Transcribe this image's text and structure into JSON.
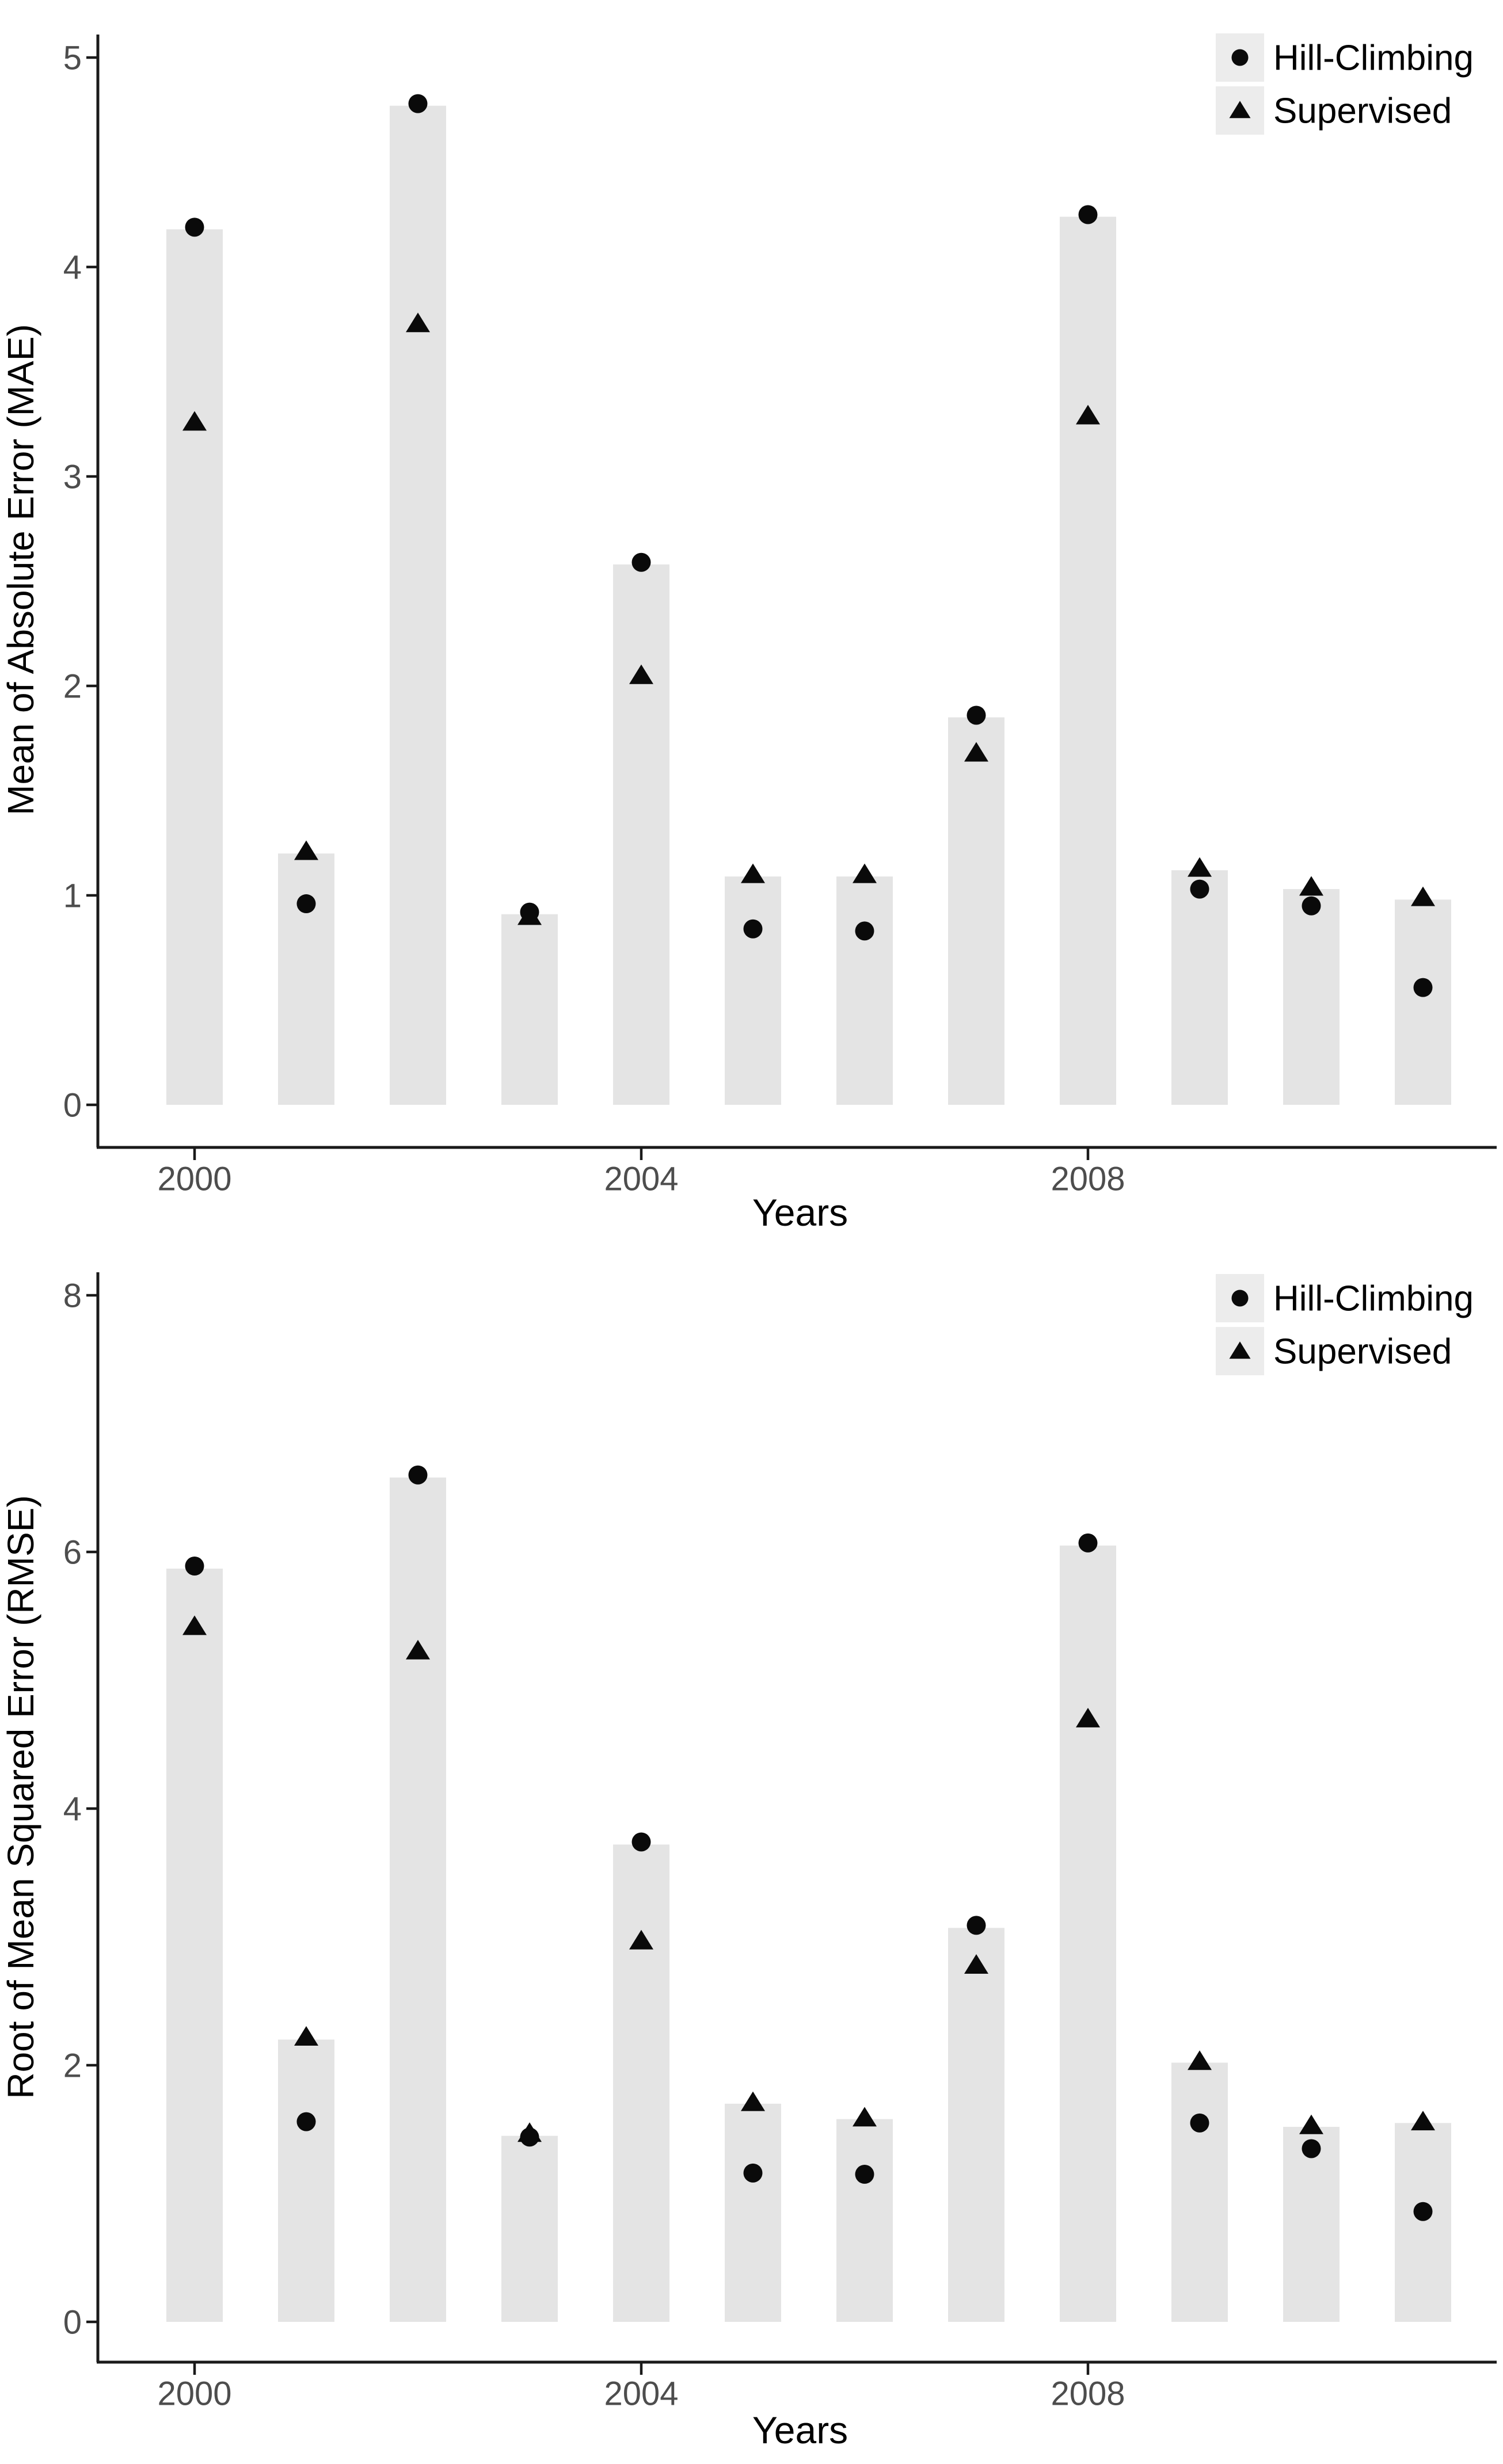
{
  "colors": {
    "background": "#FFFFFF",
    "bar": "#E4E4E4",
    "marker": "#0A0A0A",
    "axis": "#1A1A1A",
    "tick_label": "#4D4D4D",
    "axis_title": "#000000",
    "legend_key_bg": "#ECECEC",
    "legend_text": "#000000"
  },
  "legend": {
    "items": [
      {
        "label": "Hill-Climbing",
        "marker": "circle-icon"
      },
      {
        "label": "Supervised",
        "marker": "triangle-icon"
      }
    ],
    "position": "top-right"
  },
  "chart_data": [
    {
      "type": "bar",
      "title": "",
      "categories": [
        "2000",
        "2001",
        "2002",
        "2003",
        "2004",
        "2005",
        "2006",
        "2007",
        "2008",
        "2009",
        "2010",
        "2011"
      ],
      "bar_values": [
        4.18,
        1.2,
        4.77,
        0.91,
        2.58,
        1.09,
        1.09,
        1.85,
        4.24,
        1.12,
        1.03,
        0.98
      ],
      "series": [
        {
          "name": "Hill-Climbing",
          "marker": "circle",
          "values": [
            4.19,
            0.96,
            4.78,
            0.92,
            2.59,
            0.84,
            0.83,
            1.86,
            4.25,
            1.03,
            0.95,
            0.56
          ]
        },
        {
          "name": "Supervised",
          "marker": "triangle",
          "values": [
            3.26,
            1.21,
            3.73,
            0.9,
            2.05,
            1.1,
            1.1,
            1.68,
            3.29,
            1.13,
            1.04,
            0.99
          ]
        }
      ],
      "xlabel": "Years",
      "ylabel": "Mean of Absolute Error (MAE)",
      "ylim": [
        0,
        5.1
      ],
      "yticks": [
        0,
        1,
        2,
        3,
        4,
        5
      ],
      "xtick_labels": [
        "2000",
        "2004",
        "2008"
      ],
      "xtick_indices": [
        0,
        4,
        8
      ],
      "legend_position": "top-right",
      "grid": false,
      "bar_color": "#E4E4E4"
    },
    {
      "type": "bar",
      "title": "",
      "categories": [
        "2000",
        "2001",
        "2002",
        "2003",
        "2004",
        "2005",
        "2006",
        "2007",
        "2008",
        "2009",
        "2010",
        "2011"
      ],
      "bar_values": [
        5.87,
        2.2,
        6.58,
        1.45,
        3.72,
        1.7,
        1.58,
        3.07,
        6.05,
        2.02,
        1.52,
        1.55
      ],
      "series": [
        {
          "name": "Hill-Climbing",
          "marker": "circle",
          "values": [
            5.89,
            1.56,
            6.6,
            1.44,
            3.74,
            1.16,
            1.15,
            3.09,
            6.07,
            1.55,
            1.35,
            0.86
          ]
        },
        {
          "name": "Supervised",
          "marker": "triangle",
          "values": [
            5.42,
            2.22,
            5.23,
            1.47,
            2.97,
            1.71,
            1.59,
            2.78,
            4.7,
            2.03,
            1.53,
            1.56
          ]
        }
      ],
      "xlabel": "Years",
      "ylabel": "Root of Mean Squared Error (RMSE)",
      "ylim": [
        0,
        8.2
      ],
      "yticks": [
        0,
        2,
        4,
        6,
        8
      ],
      "xtick_labels": [
        "2000",
        "2004",
        "2008"
      ],
      "xtick_indices": [
        0,
        4,
        8
      ],
      "legend_position": "top-right",
      "grid": false,
      "bar_color": "#E4E4E4"
    }
  ]
}
